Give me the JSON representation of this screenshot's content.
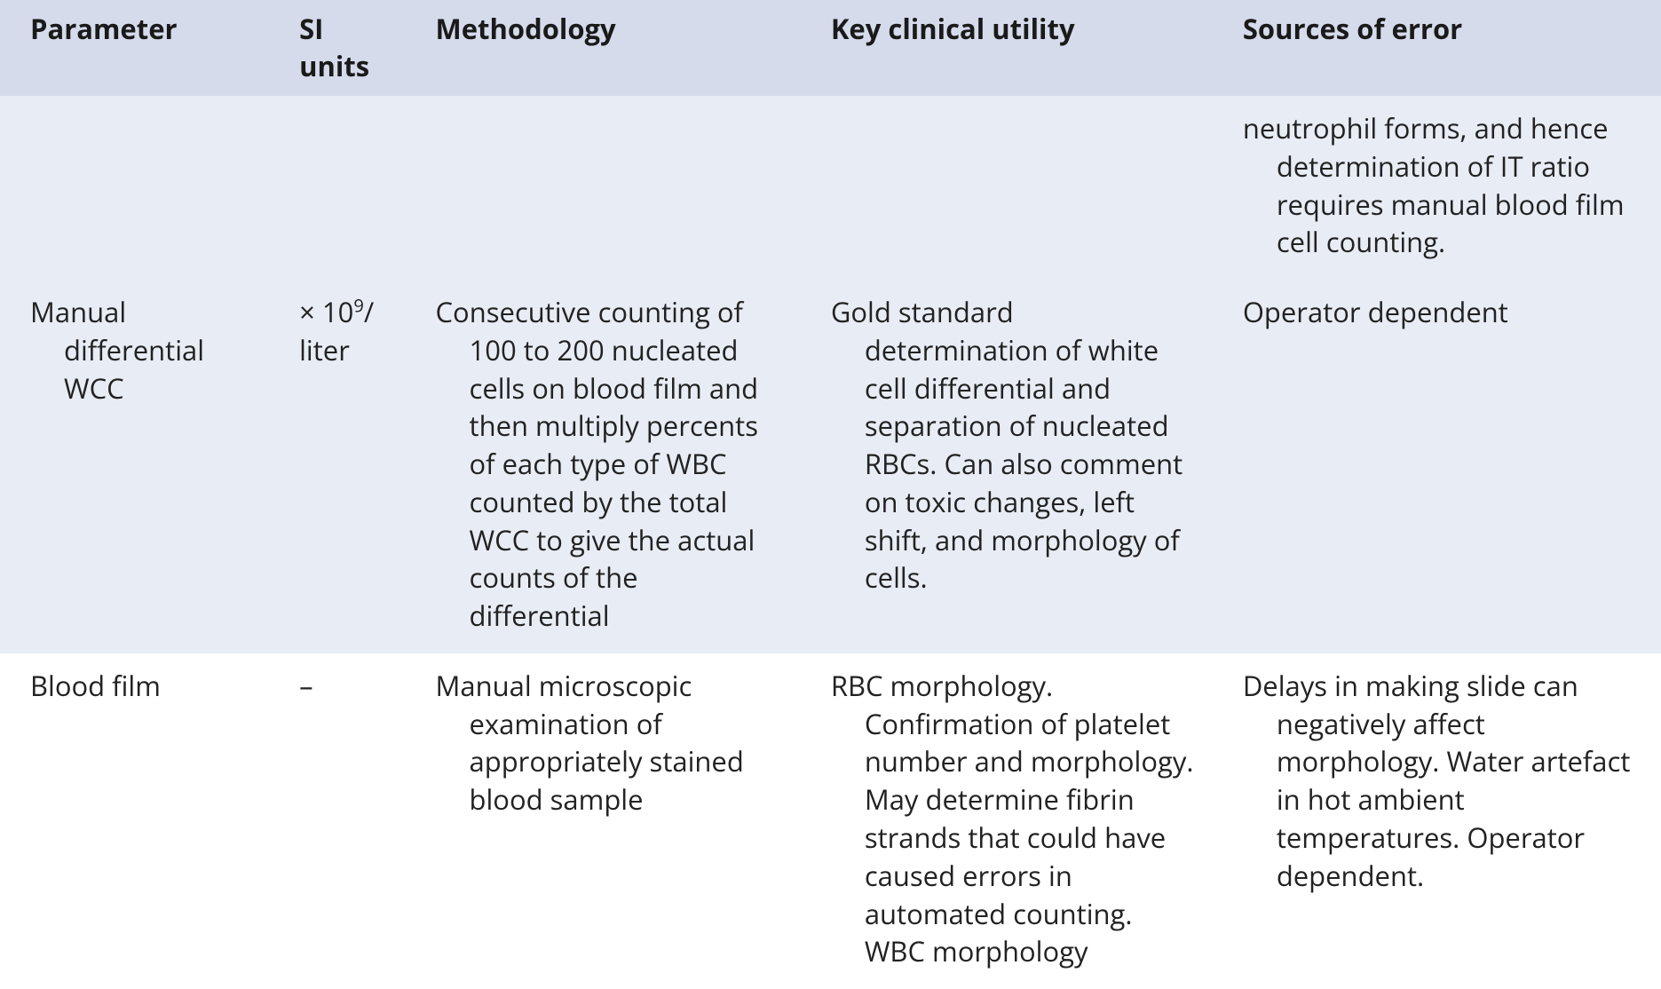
{
  "colors": {
    "header_bg": "#d5dbeb",
    "row_even_bg": "#e8ecf5",
    "row_odd_bg": "#ffffff",
    "text": "#222222"
  },
  "typography": {
    "font_family": "Myriad Pro / Segoe UI / Open Sans",
    "header_fontsize_pt": 23,
    "header_fontweight": 700,
    "body_fontsize_pt": 23,
    "body_fontweight": 400,
    "line_height": 1.38
  },
  "columns": [
    {
      "key": "parameter",
      "label": "Parameter",
      "width_pct": 16.2
    },
    {
      "key": "si_units",
      "label": "SI units",
      "width_pct": 8.2
    },
    {
      "key": "methodology",
      "label": "Methodology",
      "width_pct": 23.8
    },
    {
      "key": "utility",
      "label": "Key clinical utility",
      "width_pct": 24.8
    },
    {
      "key": "errors",
      "label": "Sources of error",
      "width_pct": 27.0
    }
  ],
  "rows": [
    {
      "parameter": "",
      "si_units": "",
      "methodology": "",
      "utility": "",
      "errors": "neutrophil forms, and hence determination of IT ratio requires manual blood film cell counting."
    },
    {
      "parameter": "Manual differential WCC",
      "si_units_html": "× 10<sup>9</sup>/ liter",
      "methodology": "Consecutive counting of 100 to 200 nucleated cells on blood film and then multiply percents of each type of WBC counted by the total WCC to give the actual counts of the differential",
      "utility": "Gold standard determination of white cell differential and separation of nucleated RBCs. Can also comment on toxic changes, left shift, and morphology of cells.",
      "errors": "Operator dependent"
    },
    {
      "parameter": "Blood film",
      "si_units": "–",
      "methodology": "Manual microscopic examination of appropriately stained blood sample",
      "utility": "RBC morphology. Confirmation of platelet number and morphology. May determine fibrin strands that could have caused errors in automated counting. WBC morphology",
      "errors": "Delays in making slide can negatively affect morphology. Water artefact in hot ambient temperatures. Operator dependent."
    }
  ]
}
